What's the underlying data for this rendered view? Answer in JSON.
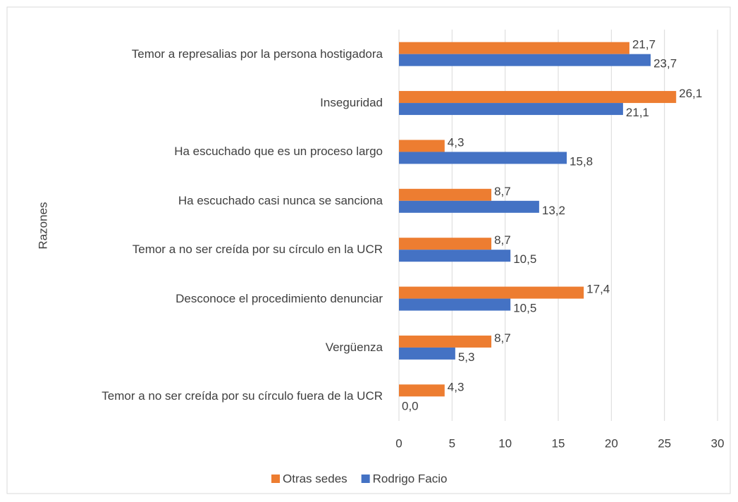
{
  "chart_data": {
    "type": "barh",
    "y_label": "Razones",
    "categories": [
      "Temor a represalias por la persona hostigadora",
      "Inseguridad",
      "Ha escuchado que es un proceso largo",
      "Ha escuchado casi nunca se sanciona",
      "Temor a no ser creída por su círculo en la UCR",
      "Desconoce el procedimiento denunciar",
      "Vergüenza",
      "Temor a no ser creída por su círculo fuera de la UCR"
    ],
    "series": [
      {
        "name": "Otras sedes",
        "color": "#ed7d31",
        "values": [
          21.7,
          26.1,
          4.3,
          8.7,
          8.7,
          17.4,
          8.7,
          4.3
        ],
        "value_labels": [
          "21,7",
          "26,1",
          "4,3",
          "8,7",
          "8,7",
          "17,4",
          "8,7",
          "4,3"
        ]
      },
      {
        "name": "Rodrigo Facio",
        "color": "#4472c4",
        "values": [
          23.7,
          21.1,
          15.8,
          13.2,
          10.5,
          10.5,
          5.3,
          0.0
        ],
        "value_labels": [
          "23,7",
          "21,1",
          "15,8",
          "13,2",
          "10,5",
          "10,5",
          "5,3",
          "0,0"
        ]
      }
    ],
    "xlim": [
      0,
      30
    ],
    "xticks": [
      0,
      5,
      10,
      15,
      20,
      25,
      30
    ],
    "grid": true,
    "legend": "bottom"
  }
}
